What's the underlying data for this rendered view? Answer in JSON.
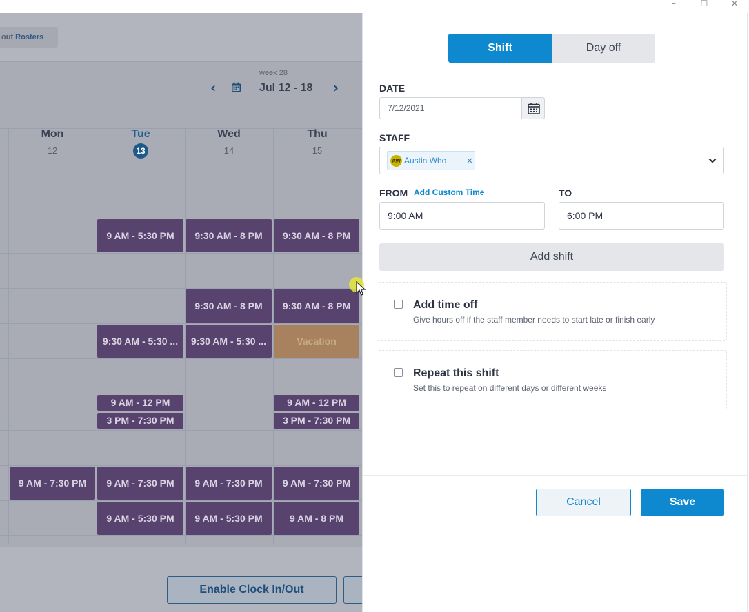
{
  "window": {
    "minimize_glyph": "–",
    "maximize_glyph": "☐",
    "close_glyph": "✕"
  },
  "roster": {
    "tab_prefix": "out ",
    "tab_label": "Rosters",
    "week_label": "week 28",
    "week_range": "Jul 12 - 18",
    "prev_glyph": "‹",
    "next_glyph": "›",
    "days": [
      {
        "name": "Mon",
        "num": "12",
        "today": false
      },
      {
        "name": "Tue",
        "num": "13",
        "today": true
      },
      {
        "name": "Wed",
        "num": "14",
        "today": false
      },
      {
        "name": "Thu",
        "num": "15",
        "today": false
      }
    ],
    "shifts": {
      "r1_tue": "9 AM - 5:30 PM",
      "r1_wed": "9:30 AM - 8 PM",
      "r1_thu": "9:30 AM - 8 PM",
      "r2_wed": "9:30 AM - 8 PM",
      "r2_thu": "9:30 AM - 8 PM",
      "r3_tue": "9:30 AM - 5:30 ...",
      "r3_wed": "9:30 AM - 5:30 ...",
      "r3_thu": "Vacation",
      "r4_tue_a": "9 AM - 12 PM",
      "r4_tue_b": "3 PM - 7:30 PM",
      "r4_thu_a": "9 AM - 12 PM",
      "r4_thu_b": "3 PM - 7:30 PM",
      "r5_mon": "9 AM - 7:30 PM",
      "r5_tue": "9 AM - 7:30 PM",
      "r5_wed": "9 AM - 7:30 PM",
      "r5_thu": "9 AM - 7:30 PM",
      "r6_tue": "9 AM - 5:30 PM",
      "r6_wed": "9 AM - 5:30 PM",
      "r6_thu": "9 AM - 8 PM"
    },
    "enable_clock_label": "Enable Clock In/Out"
  },
  "panel": {
    "toggle": {
      "shift": "Shift",
      "day_off": "Day off",
      "active": "shift"
    },
    "date_label": "DATE",
    "date_value": "7/12/2021",
    "staff_label": "STAFF",
    "staff_chip": {
      "initials": "AW",
      "name": "Austin Who",
      "remove_glyph": "×"
    },
    "from_label": "FROM",
    "add_custom_time": "Add Custom Time",
    "to_label": "TO",
    "from_value": "9:00 AM",
    "to_value": "6:00 PM",
    "add_shift_label": "Add shift",
    "time_off": {
      "title": "Add time off",
      "desc": "Give hours off if the staff member needs to start late or finish early",
      "checked": false
    },
    "repeat": {
      "title": "Repeat this shift",
      "desc": "Set this to repeat on different days or different weeks",
      "checked": false
    },
    "cancel_label": "Cancel",
    "save_label": "Save"
  },
  "colors": {
    "accent": "#0e88cf",
    "shift": "#58436f",
    "vacation": "#a8825e"
  }
}
